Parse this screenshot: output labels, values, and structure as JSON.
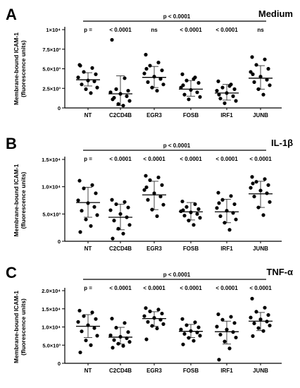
{
  "chart_data": [
    {
      "type": "scatter",
      "panel_letter": "A",
      "title": "Medium",
      "ylabel": [
        "Membrane-bound ICAM-1",
        "(fluorescence units)"
      ],
      "ylim": [
        0,
        10000
      ],
      "y_ticks": [
        0,
        2500,
        5000,
        7500,
        10000
      ],
      "y_tick_labels": [
        "0",
        "2.5×10³",
        "5.0×10³",
        "7.5×10³",
        "1×10⁴"
      ],
      "categories": [
        "NT",
        "C2CD4B",
        "EGR3",
        "FOSB",
        "IRF1",
        "JUNB"
      ],
      "p_labels": [
        "p =",
        "< 0.0001",
        "ns",
        "< 0.0001",
        "< 0.0001",
        "ns"
      ],
      "bracket_label": "p < 0.0001",
      "summary": [
        {
          "mean": 3600,
          "sd_low": 2800,
          "sd_high": 4500
        },
        {
          "mean": 1800,
          "sd_low": 300,
          "sd_high": 4100
        },
        {
          "mean": 3900,
          "sd_low": 2600,
          "sd_high": 5300
        },
        {
          "mean": 2400,
          "sd_low": 1500,
          "sd_high": 3500
        },
        {
          "mean": 1900,
          "sd_low": 1000,
          "sd_high": 3000
        },
        {
          "mean": 3800,
          "sd_low": 2400,
          "sd_high": 5400
        }
      ],
      "series": [
        {
          "values": [
            5500,
            5100,
            4600,
            4300,
            3900,
            3500,
            3400,
            3000,
            2600,
            2400,
            1900,
            5400
          ]
        },
        {
          "values": [
            8700,
            3800,
            2400,
            2200,
            2000,
            1800,
            1500,
            1300,
            900,
            500,
            300,
            1100
          ]
        },
        {
          "values": [
            6800,
            5800,
            5400,
            4800,
            4400,
            4000,
            3700,
            3300,
            3000,
            2600,
            2200,
            5000
          ]
        },
        {
          "values": [
            4300,
            3900,
            3500,
            3200,
            2600,
            2300,
            2000,
            1700,
            1400,
            1100,
            3700,
            2900
          ]
        },
        {
          "values": [
            3400,
            3000,
            2600,
            2400,
            2200,
            1900,
            1500,
            1200,
            900,
            600,
            2800,
            1700
          ]
        },
        {
          "values": [
            6500,
            6200,
            5500,
            5000,
            4600,
            4000,
            3600,
            3300,
            2900,
            2400,
            1700,
            4300
          ]
        }
      ]
    },
    {
      "type": "scatter",
      "panel_letter": "B",
      "title": "IL-1β",
      "ylabel": [
        "Membrane-bound ICAM-1",
        "(fluorescence units)"
      ],
      "ylim": [
        0,
        15000
      ],
      "y_ticks": [
        0,
        5000,
        10000,
        15000
      ],
      "y_tick_labels": [
        "0",
        "5.0×10³",
        "1.0×10⁴",
        "1.5×10⁴"
      ],
      "categories": [
        "NT",
        "C2CD4B",
        "EGR3",
        "FOSB",
        "IRF1",
        "JUNB"
      ],
      "p_labels": [
        "p =",
        "< 0.0001",
        "< 0.0001",
        "< 0.0001",
        "< 0.0001",
        "< 0.0001"
      ],
      "bracket_label": "p < 0.0001",
      "summary": [
        {
          "mean": 7100,
          "sd_low": 4400,
          "sd_high": 9900
        },
        {
          "mean": 4400,
          "sd_low": 2100,
          "sd_high": 6800
        },
        {
          "mean": 8500,
          "sd_low": 5800,
          "sd_high": 11000
        },
        {
          "mean": 5400,
          "sd_low": 3900,
          "sd_high": 7100
        },
        {
          "mean": 5400,
          "sd_low": 3400,
          "sd_high": 7700
        },
        {
          "mean": 8700,
          "sd_low": 6200,
          "sd_high": 11000
        }
      ],
      "series": [
        {
          "values": [
            11100,
            10300,
            9700,
            8800,
            7500,
            7000,
            6300,
            5600,
            4800,
            4000,
            2800,
            1700
          ]
        },
        {
          "values": [
            7600,
            7200,
            6800,
            6200,
            5700,
            5000,
            4400,
            3800,
            3000,
            2300,
            1400,
            500
          ]
        },
        {
          "values": [
            12000,
            11700,
            11200,
            10300,
            9400,
            8800,
            8200,
            7600,
            6700,
            5800,
            4600,
            9900
          ]
        },
        {
          "values": [
            7300,
            6800,
            6300,
            5900,
            5500,
            5300,
            5000,
            4700,
            4300,
            3800,
            3000,
            5700
          ]
        },
        {
          "values": [
            8900,
            8300,
            7600,
            6800,
            6100,
            5600,
            5200,
            4600,
            4000,
            3400,
            2100,
            7000
          ]
        },
        {
          "values": [
            11800,
            11400,
            10900,
            10300,
            9800,
            9300,
            8800,
            8200,
            7200,
            6200,
            4800,
            10600
          ]
        }
      ]
    },
    {
      "type": "scatter",
      "panel_letter": "C",
      "title": "TNF-α",
      "ylabel": [
        "Membrane-bound ICAM-1",
        "(fluorescence units)"
      ],
      "ylim": [
        0,
        20000
      ],
      "y_ticks": [
        0,
        5000,
        10000,
        15000,
        20000
      ],
      "y_tick_labels": [
        "0",
        "5.0×10³",
        "1.0×10⁴",
        "1.5×10⁴",
        "2.0×10⁴"
      ],
      "categories": [
        "NT",
        "C2CD4B",
        "EGR3",
        "FOSB",
        "IRF1",
        "JUNB"
      ],
      "p_labels": [
        "p =",
        "< 0.0001",
        "< 0.0001",
        "< 0.0001",
        "< 0.0001",
        "< 0.0001"
      ],
      "bracket_label": "p < 0.0001",
      "summary": [
        {
          "mean": 10200,
          "sd_low": 7100,
          "sd_high": 13400
        },
        {
          "mean": 7200,
          "sd_low": 5300,
          "sd_high": 9900
        },
        {
          "mean": 12300,
          "sd_low": 10200,
          "sd_high": 14200
        },
        {
          "mean": 8800,
          "sd_low": 7100,
          "sd_high": 10700
        },
        {
          "mean": 8700,
          "sd_low": 5300,
          "sd_high": 11600
        },
        {
          "mean": 11600,
          "sd_low": 9000,
          "sd_high": 14000
        }
      ],
      "series": [
        {
          "values": [
            14500,
            14000,
            13000,
            12200,
            11400,
            10500,
            9700,
            8800,
            7600,
            6300,
            5000,
            3000
          ]
        },
        {
          "values": [
            12300,
            11100,
            9800,
            8600,
            7700,
            7300,
            6900,
            6400,
            5900,
            5400,
            4800,
            4300
          ]
        },
        {
          "values": [
            15200,
            14800,
            14300,
            13700,
            13000,
            12500,
            12000,
            11400,
            10800,
            10300,
            9600,
            6600
          ]
        },
        {
          "values": [
            12200,
            11300,
            10500,
            9900,
            9300,
            8900,
            8500,
            8100,
            7600,
            7000,
            6200,
            5200
          ]
        },
        {
          "values": [
            13500,
            12800,
            12000,
            11100,
            10100,
            9300,
            8600,
            7900,
            7100,
            6000,
            4100,
            1000
          ]
        },
        {
          "values": [
            17800,
            15300,
            14200,
            13300,
            12600,
            12100,
            11500,
            11000,
            10400,
            9700,
            8900,
            7500
          ]
        }
      ]
    }
  ]
}
